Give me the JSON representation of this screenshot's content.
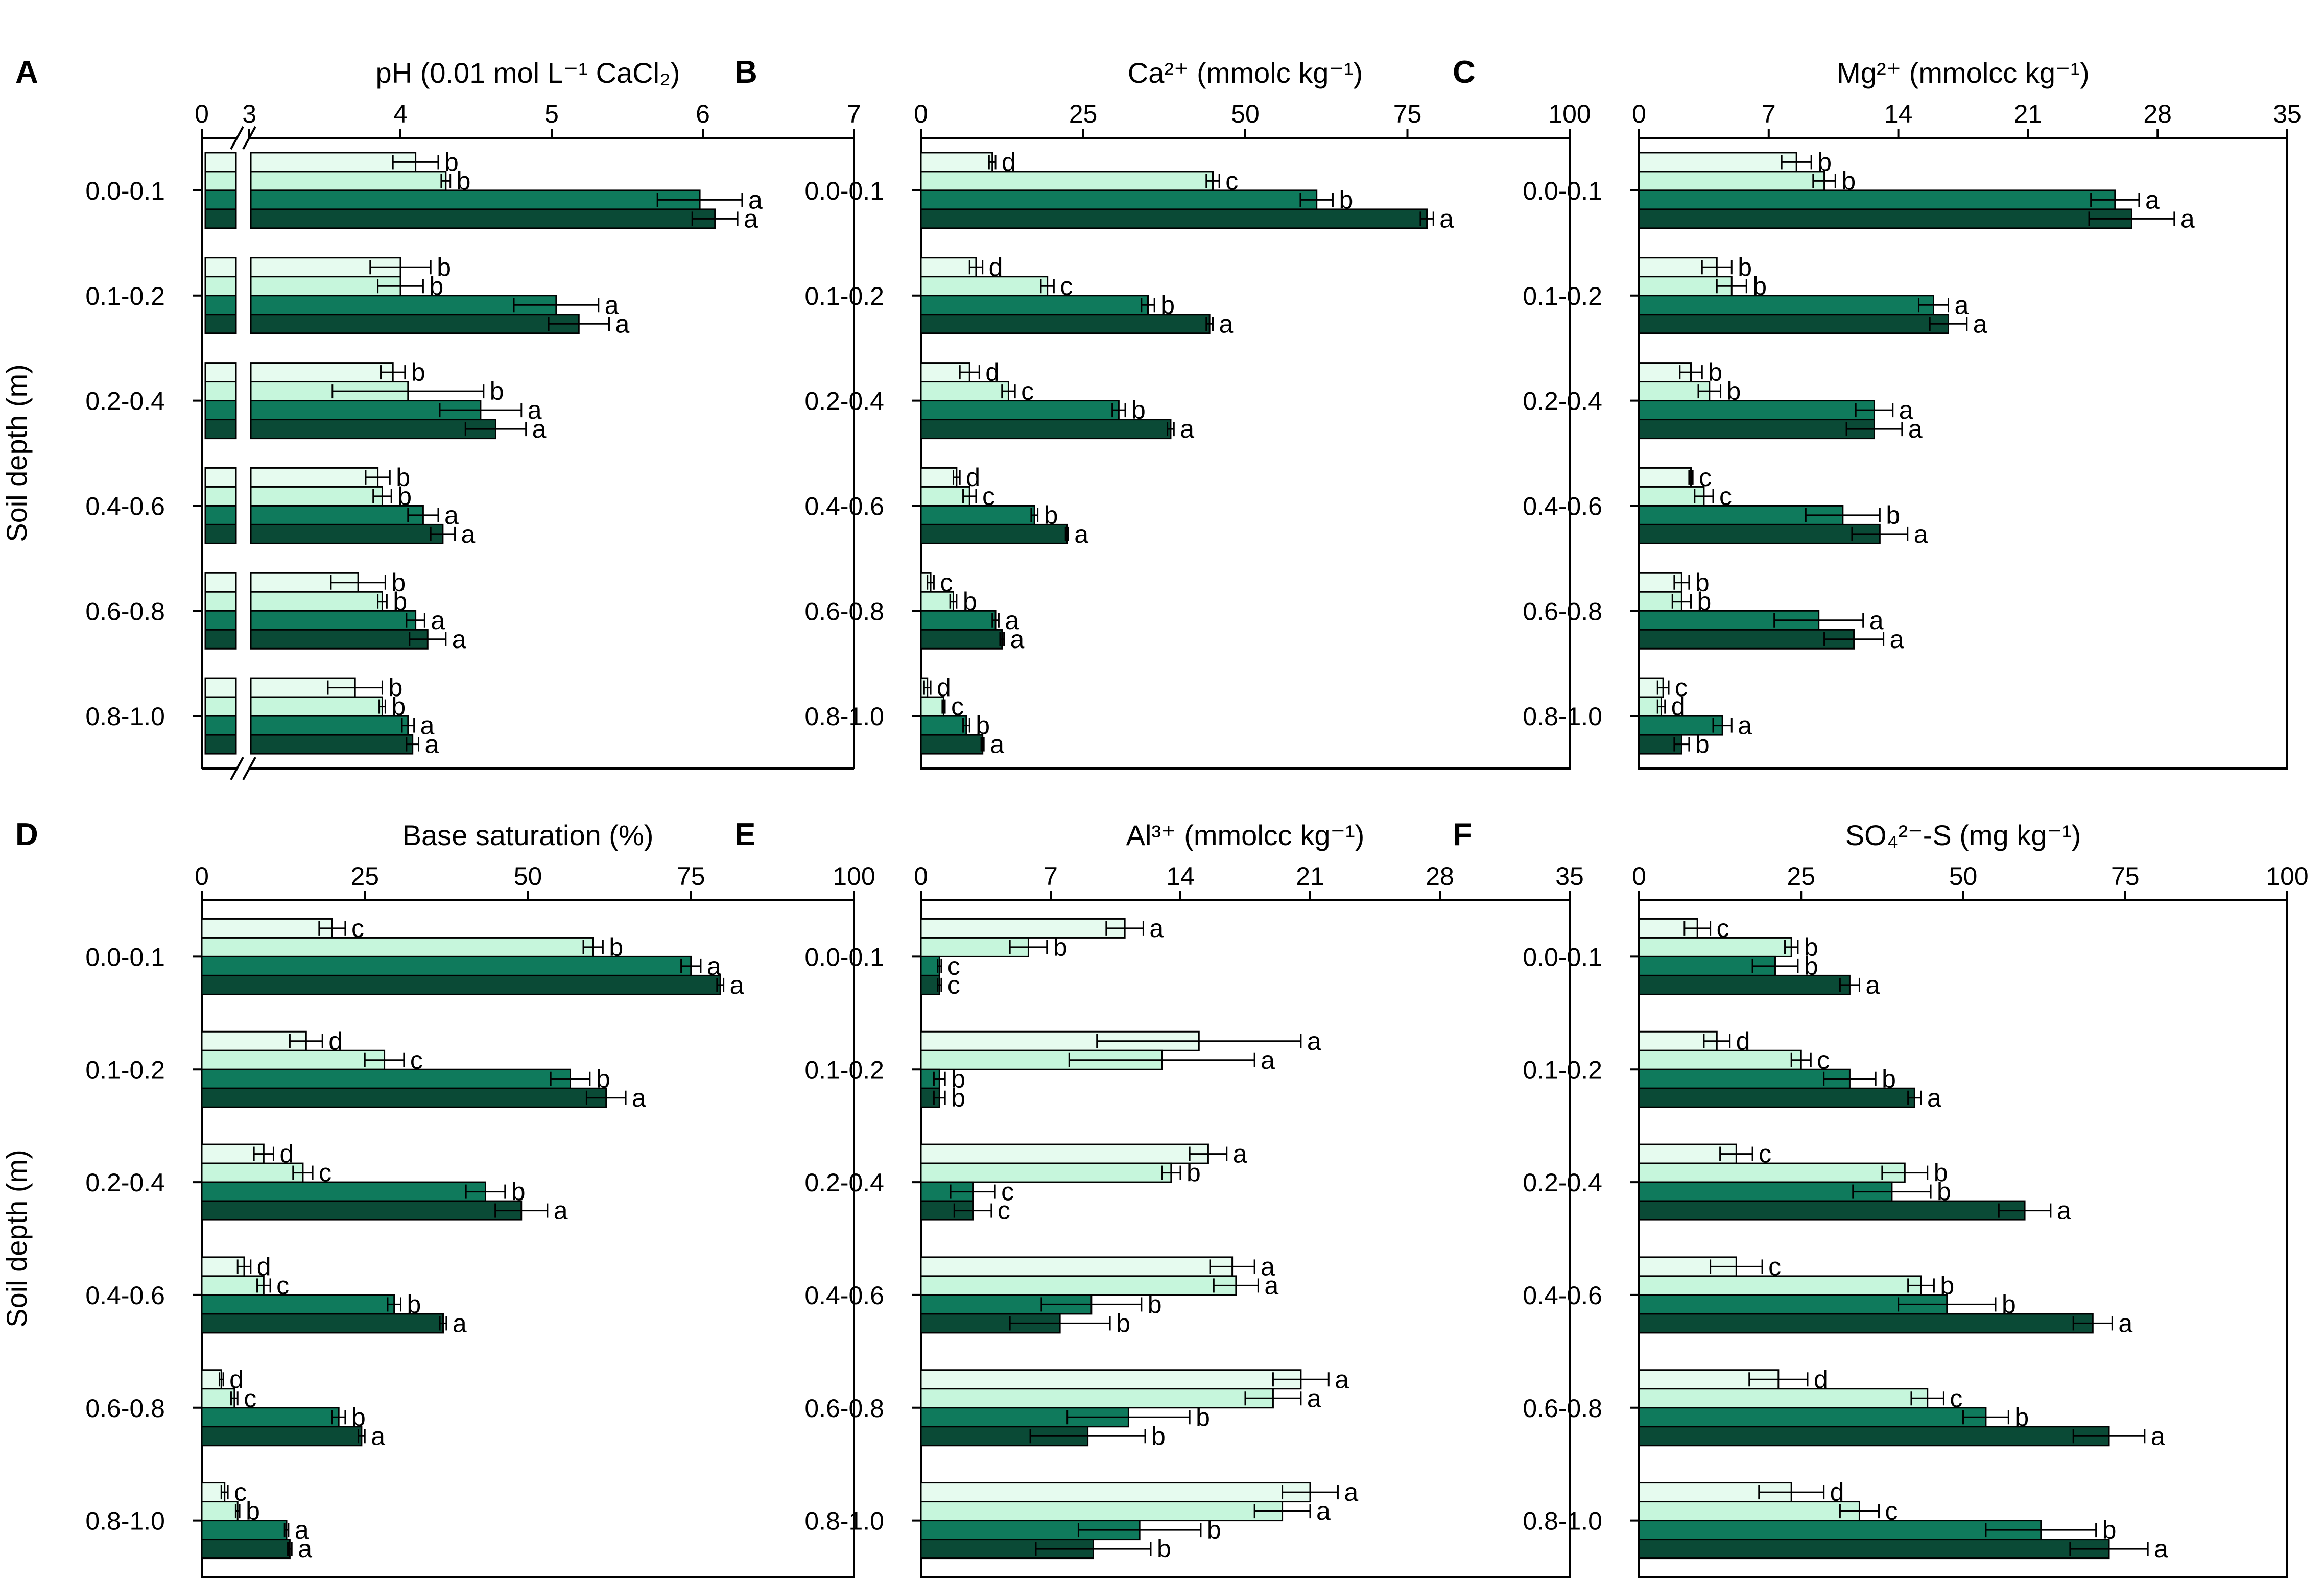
{
  "colors": {
    "series": [
      "#e6fbef",
      "#c6f6dc",
      "#0f7a5c",
      "#0a4a36"
    ],
    "axis": "#000000"
  },
  "chart_data": [
    {
      "id": "A",
      "type": "bar",
      "orientation": "horizontal",
      "panel_label": "A",
      "xlabel": "pH (0.01 mol L⁻¹ CaCl₂)",
      "ylabel": "Soil depth (m)",
      "axis_break": [
        0,
        3
      ],
      "xlim": [
        0,
        7
      ],
      "xticks": [
        0,
        3,
        4,
        5,
        6,
        7
      ],
      "xtick_labels": [
        "0",
        "3",
        "4",
        "5",
        "6",
        "7"
      ],
      "categories": [
        "0.0-0.1",
        "0.1-0.2",
        "0.2-0.4",
        "0.4-0.6",
        "0.6-0.8",
        "0.8-1.0"
      ],
      "values": [
        [
          4.1,
          4.3,
          5.98,
          6.08
        ],
        [
          4.0,
          4.0,
          5.03,
          5.18
        ],
        [
          3.95,
          4.05,
          4.53,
          4.63
        ],
        [
          3.85,
          3.88,
          4.15,
          4.28
        ],
        [
          3.72,
          3.88,
          4.1,
          4.18
        ],
        [
          3.7,
          3.88,
          4.05,
          4.08
        ]
      ],
      "errors": [
        [
          0.15,
          0.03,
          0.28,
          0.15
        ],
        [
          0.2,
          0.15,
          0.28,
          0.2
        ],
        [
          0.08,
          0.5,
          0.27,
          0.2
        ],
        [
          0.08,
          0.06,
          0.1,
          0.08
        ],
        [
          0.18,
          0.03,
          0.06,
          0.12
        ],
        [
          0.18,
          0.02,
          0.04,
          0.04
        ]
      ],
      "letters": [
        [
          "b",
          "b",
          "a",
          "a"
        ],
        [
          "b",
          "b",
          "a",
          "a"
        ],
        [
          "b",
          "b",
          "a",
          "a"
        ],
        [
          "b",
          "b",
          "a",
          "a"
        ],
        [
          "b",
          "b",
          "a",
          "a"
        ],
        [
          "b",
          "b",
          "a",
          "a"
        ]
      ]
    },
    {
      "id": "B",
      "type": "bar",
      "orientation": "horizontal",
      "panel_label": "B",
      "xlabel": "Ca²⁺ (mmolᴄ kg⁻¹)",
      "ylabel": "",
      "xlim": [
        0,
        100
      ],
      "xticks": [
        0,
        25,
        50,
        75,
        100
      ],
      "xtick_labels": [
        "0",
        "25",
        "50",
        "75",
        "100"
      ],
      "categories": [
        "0.0-0.1",
        "0.1-0.2",
        "0.2-0.4",
        "0.4-0.6",
        "0.6-0.8",
        "0.8-1.0"
      ],
      "values": [
        [
          11,
          45,
          61,
          78
        ],
        [
          8.5,
          19.5,
          35,
          44.5
        ],
        [
          7.5,
          13.5,
          30.5,
          38.5
        ],
        [
          5.5,
          7.5,
          17.5,
          22.5
        ],
        [
          1.5,
          5,
          11.5,
          12.5
        ],
        [
          1,
          3.5,
          7,
          9.5
        ]
      ],
      "errors": [
        [
          0.5,
          1,
          2.5,
          1
        ],
        [
          1,
          1,
          1,
          0.5
        ],
        [
          1.5,
          1,
          1,
          0.5
        ],
        [
          0.5,
          1,
          0.5,
          0.2
        ],
        [
          0.5,
          0.5,
          0.5,
          0.3
        ],
        [
          0.5,
          0.2,
          0.5,
          0.2
        ]
      ],
      "letters": [
        [
          "d",
          "c",
          "b",
          "a"
        ],
        [
          "d",
          "c",
          "b",
          "a"
        ],
        [
          "d",
          "c",
          "b",
          "a"
        ],
        [
          "d",
          "c",
          "b",
          "a"
        ],
        [
          "c",
          "b",
          "a",
          "a"
        ],
        [
          "d",
          "c",
          "b",
          "a"
        ]
      ]
    },
    {
      "id": "C",
      "type": "bar",
      "orientation": "horizontal",
      "panel_label": "C",
      "xlabel": "Mg²⁺ (mmolcᴄ kg⁻¹)",
      "ylabel": "",
      "xlim": [
        0,
        35
      ],
      "xticks": [
        0,
        7,
        14,
        21,
        28,
        35
      ],
      "xtick_labels": [
        "0",
        "7",
        "14",
        "21",
        "28",
        "35"
      ],
      "categories": [
        "0.0-0.1",
        "0.1-0.2",
        "0.2-0.4",
        "0.4-0.6",
        "0.6-0.8",
        "0.8-1.0"
      ],
      "values": [
        [
          8.5,
          10,
          25.7,
          26.6
        ],
        [
          4.2,
          5,
          15.9,
          16.7
        ],
        [
          2.8,
          3.8,
          12.7,
          12.7
        ],
        [
          2.8,
          3.5,
          11,
          13
        ],
        [
          2.3,
          2.3,
          9.7,
          11.6
        ],
        [
          1.3,
          1.2,
          4.5,
          2.3
        ]
      ],
      "errors": [
        [
          0.8,
          0.6,
          1.3,
          2.3
        ],
        [
          0.8,
          0.8,
          0.8,
          1
        ],
        [
          0.6,
          0.6,
          1,
          1.5
        ],
        [
          0.1,
          0.5,
          2,
          1.5
        ],
        [
          0.4,
          0.5,
          2.4,
          1.6
        ],
        [
          0.3,
          0.2,
          0.5,
          0.4
        ]
      ],
      "letters": [
        [
          "b",
          "b",
          "a",
          "a"
        ],
        [
          "b",
          "b",
          "a",
          "a"
        ],
        [
          "b",
          "b",
          "a",
          "a"
        ],
        [
          "c",
          "c",
          "b",
          "a"
        ],
        [
          "b",
          "b",
          "a",
          "a"
        ],
        [
          "c",
          "d",
          "a",
          "b"
        ]
      ]
    },
    {
      "id": "D",
      "type": "bar",
      "orientation": "horizontal",
      "panel_label": "D",
      "xlabel": "Base saturation (%)",
      "ylabel": "Soil depth (m)",
      "xlim": [
        0,
        100
      ],
      "xticks": [
        0,
        25,
        50,
        75,
        100
      ],
      "xtick_labels": [
        "0",
        "25",
        "50",
        "75",
        "100"
      ],
      "categories": [
        "0.0-0.1",
        "0.1-0.2",
        "0.2-0.4",
        "0.4-0.6",
        "0.6-0.8",
        "0.8-1.0"
      ],
      "values": [
        [
          20,
          60,
          75,
          79.5
        ],
        [
          16,
          28,
          56.5,
          62
        ],
        [
          9.5,
          15.5,
          43.5,
          49
        ],
        [
          6.5,
          9.5,
          29.5,
          37
        ],
        [
          3,
          5,
          21,
          24.5
        ],
        [
          3.5,
          5.5,
          13,
          13.5
        ]
      ],
      "errors": [
        [
          2,
          1.5,
          1.5,
          0.5
        ],
        [
          2.5,
          3,
          3,
          3
        ],
        [
          1.5,
          1.5,
          3,
          4
        ],
        [
          1,
          1,
          1,
          0.5
        ],
        [
          0.3,
          0.5,
          1,
          0.5
        ],
        [
          0.5,
          0.3,
          0.3,
          0.3
        ]
      ],
      "letters": [
        [
          "c",
          "b",
          "a",
          "a"
        ],
        [
          "d",
          "c",
          "b",
          "a"
        ],
        [
          "d",
          "c",
          "b",
          "a"
        ],
        [
          "d",
          "c",
          "b",
          "a"
        ],
        [
          "d",
          "c",
          "b",
          "a"
        ],
        [
          "c",
          "b",
          "a",
          "a"
        ]
      ]
    },
    {
      "id": "E",
      "type": "bar",
      "orientation": "horizontal",
      "panel_label": "E",
      "xlabel": "Al³⁺ (mmolcᴄ kg⁻¹)",
      "ylabel": "",
      "xlim": [
        0,
        35
      ],
      "xticks": [
        0,
        7,
        14,
        21,
        28,
        35
      ],
      "xtick_labels": [
        "0",
        "7",
        "14",
        "21",
        "28",
        "35"
      ],
      "categories": [
        "0.0-0.1",
        "0.1-0.2",
        "0.2-0.4",
        "0.4-0.6",
        "0.6-0.8",
        "0.8-1.0"
      ],
      "values": [
        [
          11,
          5.8,
          1,
          1
        ],
        [
          15,
          13,
          1,
          1
        ],
        [
          15.5,
          13.5,
          2.8,
          2.8
        ],
        [
          16.8,
          17,
          9.2,
          7.5
        ],
        [
          20.5,
          19,
          11.2,
          9
        ],
        [
          21,
          19.5,
          11.8,
          9.3
        ]
      ],
      "errors": [
        [
          1,
          1,
          0.1,
          0.1
        ],
        [
          5.5,
          5,
          0.3,
          0.3
        ],
        [
          1,
          0.5,
          1.2,
          1
        ],
        [
          1.2,
          1.2,
          2.7,
          2.7
        ],
        [
          1.5,
          1.5,
          3.3,
          3.1
        ],
        [
          1.5,
          1.5,
          3.3,
          3.1
        ]
      ],
      "letters": [
        [
          "a",
          "b",
          "c",
          "c"
        ],
        [
          "a",
          "a",
          "b",
          "b"
        ],
        [
          "a",
          "b",
          "c",
          "c"
        ],
        [
          "a",
          "a",
          "b",
          "b"
        ],
        [
          "a",
          "a",
          "b",
          "b"
        ],
        [
          "a",
          "a",
          "b",
          "b"
        ]
      ]
    },
    {
      "id": "F",
      "type": "bar",
      "orientation": "horizontal",
      "panel_label": "F",
      "xlabel": "SO₄²⁻-S (mg kg⁻¹)",
      "ylabel": "",
      "xlim": [
        0,
        100
      ],
      "xticks": [
        0,
        25,
        50,
        75,
        100
      ],
      "xtick_labels": [
        "0",
        "25",
        "50",
        "75",
        "100"
      ],
      "categories": [
        "0.0-0.1",
        "0.1-0.2",
        "0.2-0.4",
        "0.4-0.6",
        "0.6-0.8",
        "0.8-1.0"
      ],
      "values": [
        [
          9,
          23.5,
          21,
          32.5
        ],
        [
          12,
          25,
          32.5,
          42.5
        ],
        [
          15,
          41,
          39,
          59.5
        ],
        [
          15,
          43.5,
          47.5,
          70
        ],
        [
          21.5,
          44.5,
          53.5,
          72.5
        ],
        [
          23.5,
          34,
          62,
          72.5
        ]
      ],
      "errors": [
        [
          2,
          1,
          3.5,
          1.5
        ],
        [
          2,
          1.5,
          4,
          1
        ],
        [
          2.5,
          3.5,
          6,
          4
        ],
        [
          4,
          2,
          7.5,
          3
        ],
        [
          4.5,
          2.5,
          3.5,
          5.5
        ],
        [
          5,
          3,
          8.5,
          6
        ]
      ],
      "letters": [
        [
          "c",
          "b",
          "b",
          "a"
        ],
        [
          "d",
          "c",
          "b",
          "a"
        ],
        [
          "c",
          "b",
          "b",
          "a"
        ],
        [
          "c",
          "b",
          "b",
          "a"
        ],
        [
          "d",
          "c",
          "b",
          "a"
        ],
        [
          "d",
          "c",
          "b",
          "a"
        ]
      ]
    }
  ]
}
